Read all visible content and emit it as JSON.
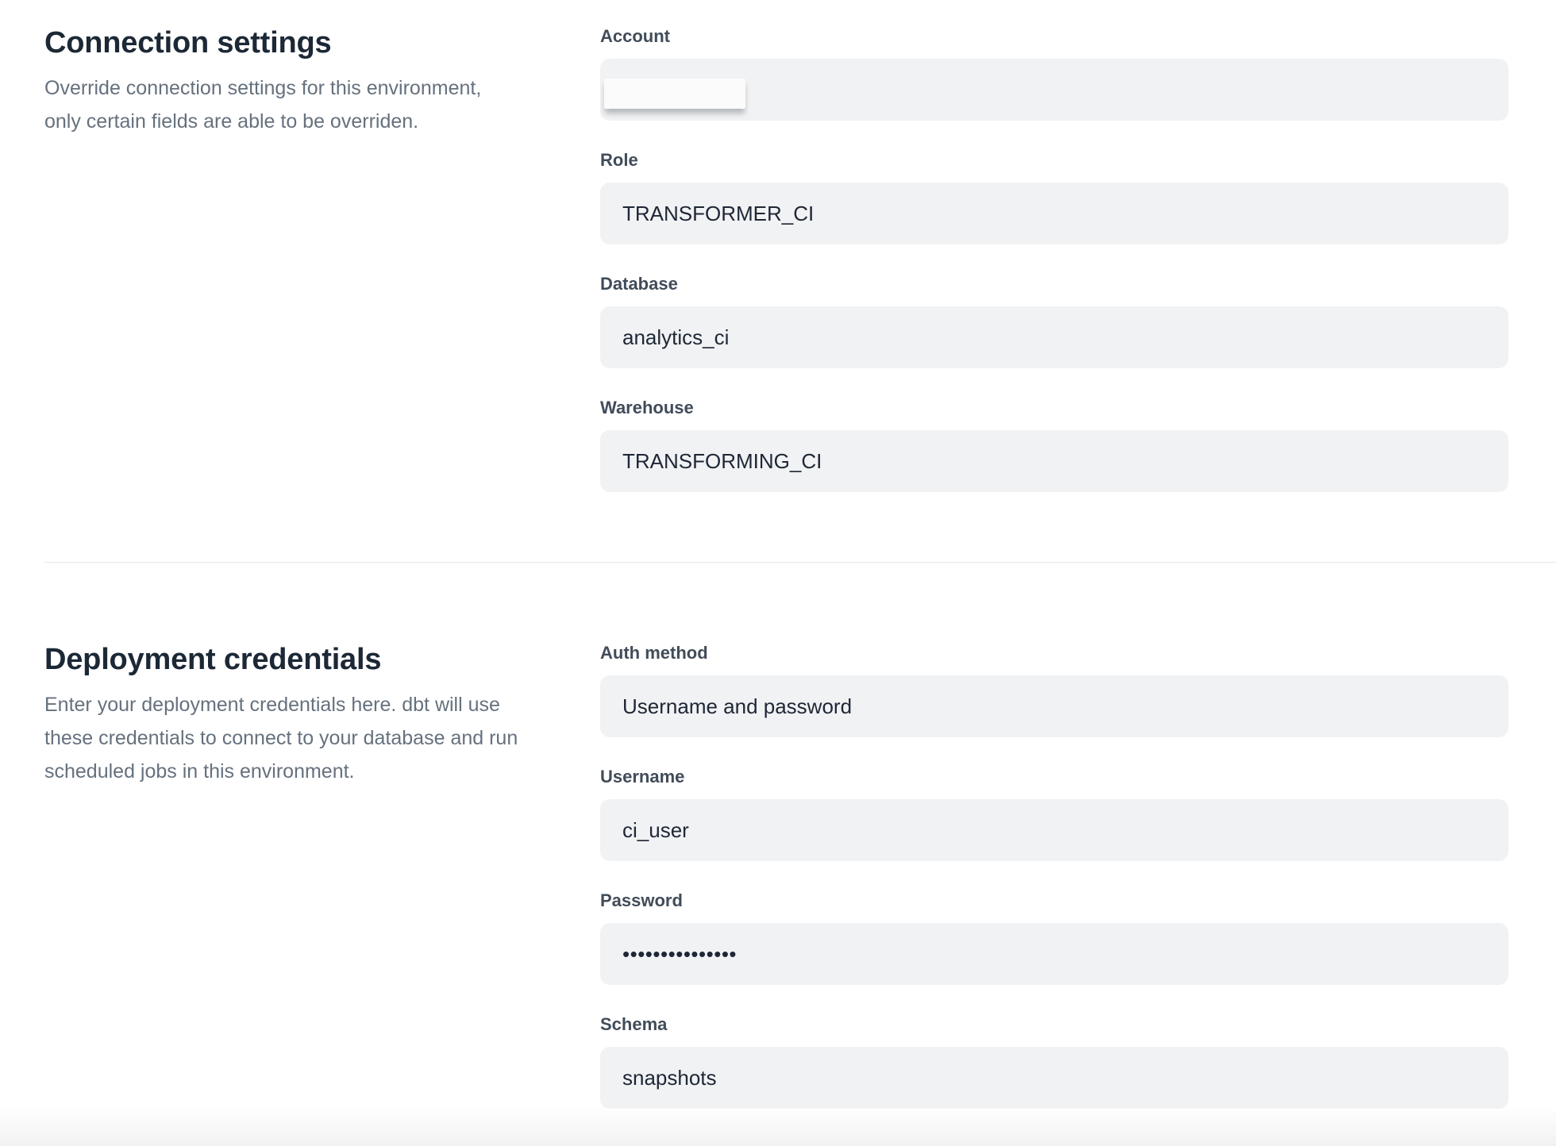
{
  "colors": {
    "heading_text": "#1c2836",
    "label_text": "#414c59",
    "value_text": "#1e2735",
    "description_text": "#66717e",
    "input_background": "#f1f2f4",
    "divider": "#e5e7ea"
  },
  "page": {
    "sections": [
      {
        "title": "Connection settings",
        "description_lines": [
          "Override connection settings for this environment,",
          "only certain fields are able to be overriden."
        ],
        "fields": [
          {
            "label": "Account",
            "value": ""
          },
          {
            "label": "Role",
            "value": "TRANSFORMER_CI"
          },
          {
            "label": "Database",
            "value": "analytics_ci"
          },
          {
            "label": "Warehouse",
            "value": "TRANSFORMING_CI"
          }
        ]
      },
      {
        "title": "Deployment credentials",
        "description_lines": [
          "Enter your deployment credentials here. dbt will use",
          "these credentials to connect to your database and run",
          "scheduled jobs in this environment."
        ],
        "fields": [
          {
            "label": "Auth method",
            "value": "Username and password"
          },
          {
            "label": "Username",
            "value": "ci_user"
          },
          {
            "label": "Password",
            "value": "•••••••••••••••"
          },
          {
            "label": "Schema",
            "value": "snapshots"
          }
        ]
      }
    ]
  }
}
